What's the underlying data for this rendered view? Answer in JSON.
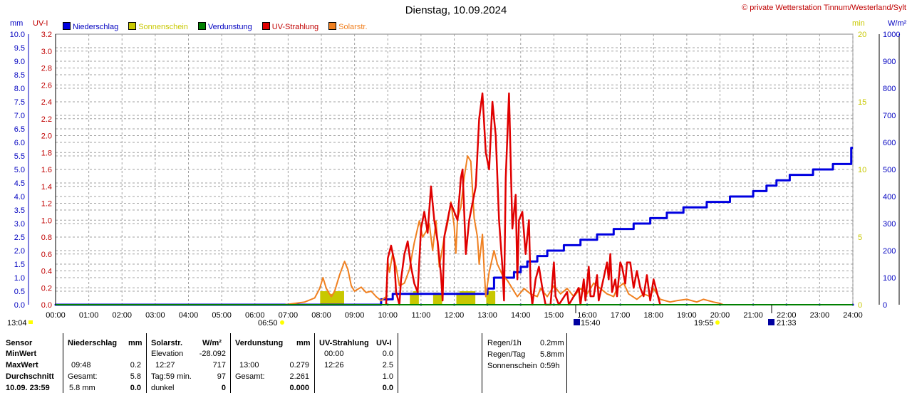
{
  "title": "Dienstag, 10.09.2024",
  "credit": "© private Wetterstation Tinnum/Westerland/Sylt",
  "units": {
    "mm": "mm",
    "uvi": "UV-I",
    "min": "min",
    "wm2": "W/m²"
  },
  "legend": [
    {
      "name": "Niederschlag",
      "color": "#0000e0",
      "text_color": "#0000c0"
    },
    {
      "name": "Sonnenschein",
      "color": "#c8c800",
      "text_color": "#c8c800"
    },
    {
      "name": "Verdunstung",
      "color": "#008000",
      "text_color": "#0000c0"
    },
    {
      "name": "UV-Strahlung",
      "color": "#e00000",
      "text_color": "#c00000"
    },
    {
      "name": "Solarstr.",
      "color": "#f08020",
      "text_color": "#f08020"
    }
  ],
  "markers": {
    "left_time": "13:04",
    "sunrise": "06:50",
    "sunset": "19:55",
    "moonrise": "15:40",
    "moonset": "21:33"
  },
  "chart_data": {
    "type": "line",
    "x_range": [
      "00:00",
      "24:00"
    ],
    "x_ticks": [
      "00:00",
      "01:00",
      "02:00",
      "03:00",
      "04:00",
      "05:00",
      "06:00",
      "07:00",
      "08:00",
      "09:00",
      "10:00",
      "11:00",
      "12:00",
      "13:00",
      "14:00",
      "15:00",
      "16:00",
      "17:00",
      "18:00",
      "19:00",
      "20:00",
      "21:00",
      "22:00",
      "23:00",
      "24:00"
    ],
    "axes": {
      "mm": {
        "range": [
          0,
          10
        ],
        "ticks": [
          "0.0",
          "0.5",
          "1.0",
          "1.5",
          "2.0",
          "2.5",
          "3.0",
          "3.5",
          "4.0",
          "4.5",
          "5.0",
          "5.5",
          "6.0",
          "6.5",
          "7.0",
          "7.5",
          "8.0",
          "8.5",
          "9.0",
          "9.5",
          "10.0"
        ]
      },
      "uvi": {
        "range": [
          0,
          3.2
        ],
        "ticks": [
          "0.0",
          "0.2",
          "0.4",
          "0.6",
          "0.8",
          "1.0",
          "1.2",
          "1.4",
          "1.6",
          "1.8",
          "2.0",
          "2.2",
          "2.4",
          "2.6",
          "2.8",
          "3.0",
          "3.2"
        ]
      },
      "min": {
        "range": [
          0,
          20
        ],
        "ticks": [
          "0",
          "5",
          "10",
          "15",
          "20"
        ]
      },
      "wm2": {
        "range": [
          0,
          1000
        ],
        "ticks": [
          "0",
          "100",
          "200",
          "300",
          "400",
          "500",
          "600",
          "700",
          "800",
          "900",
          "1000"
        ]
      }
    },
    "grid": true,
    "series": [
      {
        "name": "Niederschlag",
        "axis": "mm",
        "step": true,
        "points": [
          [
            0,
            0
          ],
          [
            9.8,
            0
          ],
          [
            9.8,
            0.2
          ],
          [
            10.15,
            0.2
          ],
          [
            10.15,
            0.4
          ],
          [
            13.0,
            0.4
          ],
          [
            13.0,
            0.6
          ],
          [
            13.2,
            0.6
          ],
          [
            13.2,
            1.0
          ],
          [
            13.8,
            1.0
          ],
          [
            13.8,
            1.2
          ],
          [
            14.0,
            1.2
          ],
          [
            14.0,
            1.4
          ],
          [
            14.2,
            1.4
          ],
          [
            14.2,
            1.6
          ],
          [
            14.5,
            1.6
          ],
          [
            14.5,
            1.8
          ],
          [
            14.8,
            1.8
          ],
          [
            14.8,
            2.0
          ],
          [
            15.3,
            2.0
          ],
          [
            15.3,
            2.2
          ],
          [
            15.8,
            2.2
          ],
          [
            15.8,
            2.4
          ],
          [
            16.3,
            2.4
          ],
          [
            16.3,
            2.6
          ],
          [
            16.8,
            2.6
          ],
          [
            16.8,
            2.8
          ],
          [
            17.4,
            2.8
          ],
          [
            17.4,
            3.0
          ],
          [
            17.9,
            3.0
          ],
          [
            17.9,
            3.2
          ],
          [
            18.4,
            3.2
          ],
          [
            18.4,
            3.4
          ],
          [
            18.9,
            3.4
          ],
          [
            18.9,
            3.6
          ],
          [
            19.6,
            3.6
          ],
          [
            19.6,
            3.8
          ],
          [
            20.3,
            3.8
          ],
          [
            20.3,
            4.0
          ],
          [
            21.0,
            4.0
          ],
          [
            21.0,
            4.2
          ],
          [
            21.4,
            4.2
          ],
          [
            21.4,
            4.4
          ],
          [
            21.7,
            4.4
          ],
          [
            21.7,
            4.6
          ],
          [
            22.1,
            4.6
          ],
          [
            22.1,
            4.8
          ],
          [
            22.8,
            4.8
          ],
          [
            22.8,
            5.0
          ],
          [
            23.4,
            5.0
          ],
          [
            23.4,
            5.2
          ],
          [
            23.95,
            5.2
          ],
          [
            23.95,
            5.8
          ],
          [
            24.0,
            5.8
          ]
        ]
      },
      {
        "name": "Solarstr.",
        "axis": "wm2",
        "points": [
          [
            6.9,
            0
          ],
          [
            7.2,
            5
          ],
          [
            7.5,
            10
          ],
          [
            7.8,
            25
          ],
          [
            7.95,
            60
          ],
          [
            8.05,
            100
          ],
          [
            8.15,
            60
          ],
          [
            8.3,
            30
          ],
          [
            8.4,
            50
          ],
          [
            8.55,
            110
          ],
          [
            8.7,
            160
          ],
          [
            8.8,
            130
          ],
          [
            8.9,
            70
          ],
          [
            9.0,
            50
          ],
          [
            9.2,
            65
          ],
          [
            9.35,
            45
          ],
          [
            9.5,
            50
          ],
          [
            9.65,
            30
          ],
          [
            9.8,
            15
          ],
          [
            9.95,
            30
          ],
          [
            10.0,
            160
          ],
          [
            10.05,
            120
          ],
          [
            10.15,
            190
          ],
          [
            10.25,
            140
          ],
          [
            10.35,
            70
          ],
          [
            10.5,
            80
          ],
          [
            10.65,
            130
          ],
          [
            10.8,
            230
          ],
          [
            10.95,
            310
          ],
          [
            11.05,
            250
          ],
          [
            11.15,
            270
          ],
          [
            11.25,
            300
          ],
          [
            11.35,
            200
          ],
          [
            11.45,
            310
          ],
          [
            11.55,
            140
          ],
          [
            11.7,
            250
          ],
          [
            11.8,
            300
          ],
          [
            11.9,
            380
          ],
          [
            12.0,
            290
          ],
          [
            12.05,
            190
          ],
          [
            12.1,
            320
          ],
          [
            12.2,
            360
          ],
          [
            12.3,
            470
          ],
          [
            12.4,
            550
          ],
          [
            12.5,
            530
          ],
          [
            12.6,
            320
          ],
          [
            12.7,
            250
          ],
          [
            12.75,
            150
          ],
          [
            12.85,
            260
          ],
          [
            12.9,
            130
          ],
          [
            12.95,
            30
          ],
          [
            13.05,
            120
          ],
          [
            13.2,
            200
          ],
          [
            13.3,
            150
          ],
          [
            13.45,
            110
          ],
          [
            13.6,
            90
          ],
          [
            13.8,
            50
          ],
          [
            13.9,
            30
          ],
          [
            14.1,
            60
          ],
          [
            14.3,
            40
          ],
          [
            14.5,
            30
          ],
          [
            14.6,
            60
          ],
          [
            14.8,
            30
          ],
          [
            15.0,
            70
          ],
          [
            15.2,
            40
          ],
          [
            15.4,
            60
          ],
          [
            15.6,
            30
          ],
          [
            15.8,
            60
          ],
          [
            16.0,
            40
          ],
          [
            16.2,
            80
          ],
          [
            16.4,
            60
          ],
          [
            16.6,
            40
          ],
          [
            16.8,
            30
          ],
          [
            16.9,
            60
          ],
          [
            17.1,
            80
          ],
          [
            17.25,
            40
          ],
          [
            17.5,
            20
          ],
          [
            17.7,
            40
          ],
          [
            17.9,
            30
          ],
          [
            18.0,
            60
          ],
          [
            18.2,
            20
          ],
          [
            18.5,
            10
          ],
          [
            18.7,
            15
          ],
          [
            19.0,
            20
          ],
          [
            19.3,
            10
          ],
          [
            19.5,
            20
          ],
          [
            19.8,
            10
          ],
          [
            20.0,
            5
          ],
          [
            20.1,
            0
          ]
        ]
      },
      {
        "name": "UV-Strahlung",
        "axis": "uvi",
        "points": [
          [
            9.95,
            0
          ],
          [
            10.0,
            0.55
          ],
          [
            10.1,
            0.7
          ],
          [
            10.2,
            0.5
          ],
          [
            10.25,
            0.15
          ],
          [
            10.35,
            0
          ],
          [
            10.4,
            0.3
          ],
          [
            10.5,
            0.6
          ],
          [
            10.6,
            0.75
          ],
          [
            10.7,
            0.45
          ],
          [
            10.8,
            0.25
          ],
          [
            10.9,
            0.15
          ],
          [
            11.0,
            0.9
          ],
          [
            11.1,
            1.1
          ],
          [
            11.2,
            0.85
          ],
          [
            11.3,
            1.4
          ],
          [
            11.4,
            1.0
          ],
          [
            11.5,
            0.75
          ],
          [
            11.6,
            0.35
          ],
          [
            11.65,
            0.05
          ],
          [
            11.7,
            0.8
          ],
          [
            11.8,
            1.0
          ],
          [
            11.9,
            1.2
          ],
          [
            12.0,
            1.1
          ],
          [
            12.1,
            1.0
          ],
          [
            12.2,
            1.5
          ],
          [
            12.25,
            1.6
          ],
          [
            12.35,
            0.6
          ],
          [
            12.45,
            1.0
          ],
          [
            12.55,
            1.2
          ],
          [
            12.65,
            1.4
          ],
          [
            12.75,
            2.2
          ],
          [
            12.85,
            2.5
          ],
          [
            12.95,
            1.8
          ],
          [
            13.05,
            1.6
          ],
          [
            13.15,
            2.4
          ],
          [
            13.25,
            2.0
          ],
          [
            13.35,
            1.0
          ],
          [
            13.45,
            0.45
          ],
          [
            13.5,
            0.05
          ],
          [
            13.55,
            1.5
          ],
          [
            13.65,
            2.5
          ],
          [
            13.75,
            0.9
          ],
          [
            13.85,
            1.3
          ],
          [
            13.9,
            0.3
          ],
          [
            13.95,
            1.0
          ],
          [
            14.05,
            1.1
          ],
          [
            14.15,
            0.6
          ],
          [
            14.25,
            1.0
          ],
          [
            14.3,
            0.2
          ],
          [
            14.35,
            0
          ],
          [
            14.45,
            0.3
          ],
          [
            14.55,
            0.45
          ],
          [
            14.65,
            0.2
          ],
          [
            14.75,
            0
          ],
          [
            14.9,
            0
          ],
          [
            15.0,
            0.5
          ],
          [
            15.05,
            0.1
          ],
          [
            15.15,
            0
          ],
          [
            15.4,
            0.15
          ],
          [
            15.45,
            0
          ],
          [
            15.75,
            0.2
          ],
          [
            15.8,
            0
          ],
          [
            15.9,
            0.3
          ],
          [
            15.95,
            0.05
          ],
          [
            16.05,
            0.45
          ],
          [
            16.1,
            0.1
          ],
          [
            16.2,
            0.1
          ],
          [
            16.3,
            0.35
          ],
          [
            16.35,
            0.05
          ],
          [
            16.6,
            0.5
          ],
          [
            16.65,
            0.3
          ],
          [
            16.7,
            0.6
          ],
          [
            16.75,
            0.15
          ],
          [
            16.85,
            0.3
          ],
          [
            16.9,
            0.1
          ],
          [
            17.0,
            0.5
          ],
          [
            17.05,
            0.45
          ],
          [
            17.15,
            0.25
          ],
          [
            17.2,
            0.5
          ],
          [
            17.3,
            0.5
          ],
          [
            17.4,
            0.2
          ],
          [
            17.5,
            0.4
          ],
          [
            17.6,
            0.2
          ],
          [
            17.7,
            0.1
          ],
          [
            17.8,
            0.35
          ],
          [
            17.9,
            0.05
          ],
          [
            18.0,
            0.3
          ],
          [
            18.1,
            0.15
          ],
          [
            18.2,
            0
          ]
        ]
      },
      {
        "name": "Sonnenschein",
        "axis": "min",
        "type": "bar",
        "points": [
          [
            8.05,
            1.0
          ],
          [
            8.15,
            1.0
          ],
          [
            8.3,
            0.8
          ],
          [
            8.45,
            1.0
          ],
          [
            8.6,
            1.0
          ],
          [
            10.75,
            0.9
          ],
          [
            10.85,
            1.0
          ],
          [
            11.45,
            0.9
          ],
          [
            11.55,
            0.8
          ],
          [
            12.15,
            0.9
          ],
          [
            12.25,
            1.0
          ],
          [
            12.35,
            1.0
          ],
          [
            12.45,
            1.0
          ],
          [
            12.55,
            1.0
          ],
          [
            13.05,
            1.0
          ],
          [
            13.15,
            1.0
          ]
        ]
      },
      {
        "name": "Verdunstung",
        "axis": "mm",
        "type": "line",
        "points": [
          [
            0,
            0
          ],
          [
            24,
            0
          ]
        ]
      }
    ]
  },
  "table": {
    "sensor_col": {
      "header": "Sensor",
      "rows": [
        "MinWert",
        "MaxWert",
        "Durchschnitt",
        "10.09. 23:59"
      ]
    },
    "niederschlag": {
      "header": "Niederschlag",
      "unit": "mm",
      "rows": [
        [
          "",
          ""
        ],
        [
          "09:48",
          "0.2"
        ],
        [
          "Gesamt:",
          "5.8"
        ],
        [
          "5.8 mm",
          "0.0"
        ]
      ]
    },
    "solar": {
      "header": "Solarstr.",
      "unit": "W/m²",
      "rows": [
        [
          "Elevation",
          "-28.092"
        ],
        [
          "12:27",
          "717"
        ],
        [
          "Tag:59 min.",
          "97"
        ],
        [
          "dunkel",
          "0"
        ]
      ]
    },
    "verdunstung": {
      "header": "Verdunstung",
      "unit": "mm",
      "rows": [
        [
          "",
          ""
        ],
        [
          "13:00",
          "0.279"
        ],
        [
          "Gesamt:",
          "2.261"
        ],
        [
          "",
          "0.000"
        ]
      ]
    },
    "uv": {
      "header": "UV-Strahlung",
      "unit": "UV-I",
      "rows": [
        [
          "00:00",
          "0.0"
        ],
        [
          "12:26",
          "2.5"
        ],
        [
          "",
          "1.0"
        ],
        [
          "",
          "0.0"
        ]
      ]
    },
    "summary": [
      {
        "label": "Regen/1h",
        "value": "0.2mm"
      },
      {
        "label": "Regen/Tag",
        "value": "5.8mm"
      },
      {
        "label": "Sonnenschein",
        "value": "0:59h"
      }
    ]
  }
}
